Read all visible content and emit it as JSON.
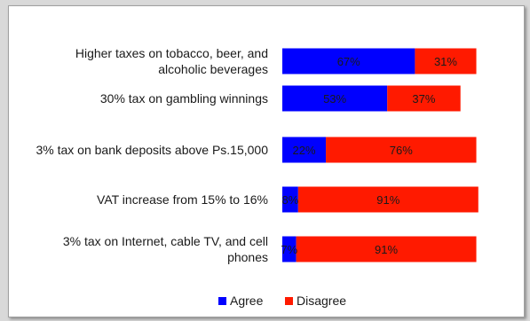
{
  "chart_data": {
    "type": "bar",
    "orientation": "horizontal",
    "stacked": true,
    "categories": [
      "Higher taxes on tobacco, beer, and alcoholic beverages",
      "30% tax on gambling winnings",
      "3% tax on bank deposits above Ps.15,000",
      "VAT increase from 15% to 16%",
      "3% tax on Internet, cable TV, and cell phones"
    ],
    "category_lines": [
      [
        "Higher taxes on tobacco, beer, and",
        "alcoholic beverages"
      ],
      [
        "30% tax on gambling winnings"
      ],
      [
        "3% tax on bank deposits above Ps.15,000"
      ],
      [
        "VAT increase from 15% to 16%"
      ],
      [
        "3% tax on Internet, cable TV, and cell",
        "phones"
      ]
    ],
    "series": [
      {
        "name": "Agree",
        "color": "#0000ff",
        "values": [
          67,
          53,
          22,
          8,
          7
        ],
        "labels": [
          "67%",
          "53%",
          "22%",
          "8%",
          "7%"
        ]
      },
      {
        "name": "Disagree",
        "color": "#ff1a00",
        "values": [
          31,
          37,
          76,
          91,
          91
        ],
        "labels": [
          "31%",
          "37%",
          "76%",
          "91%",
          "91%"
        ]
      }
    ],
    "xlim": [
      0,
      100
    ],
    "grid": false,
    "legend_position": "bottom"
  }
}
